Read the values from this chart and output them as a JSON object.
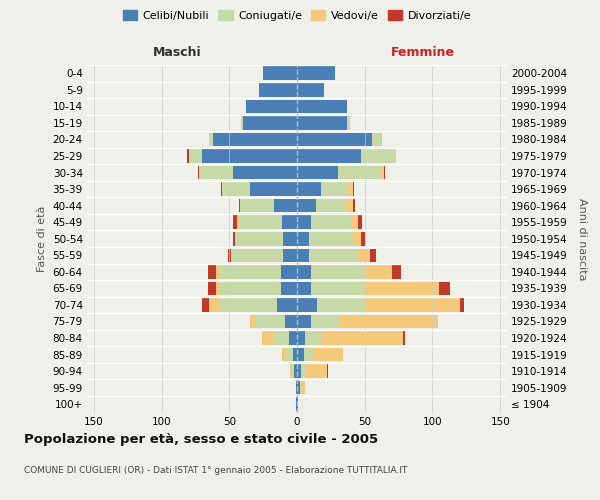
{
  "age_groups": [
    "100+",
    "95-99",
    "90-94",
    "85-89",
    "80-84",
    "75-79",
    "70-74",
    "65-69",
    "60-64",
    "55-59",
    "50-54",
    "45-49",
    "40-44",
    "35-39",
    "30-34",
    "25-29",
    "20-24",
    "15-19",
    "10-14",
    "5-9",
    "0-4"
  ],
  "birth_years": [
    "≤ 1904",
    "1905-1909",
    "1910-1914",
    "1915-1919",
    "1920-1924",
    "1925-1929",
    "1930-1934",
    "1935-1939",
    "1940-1944",
    "1945-1949",
    "1950-1954",
    "1955-1959",
    "1960-1964",
    "1965-1969",
    "1970-1974",
    "1975-1979",
    "1980-1984",
    "1985-1989",
    "1990-1994",
    "1995-1999",
    "2000-2004"
  ],
  "maschi": {
    "celibi": [
      1,
      1,
      2,
      3,
      6,
      9,
      15,
      12,
      12,
      10,
      10,
      11,
      17,
      35,
      47,
      70,
      62,
      40,
      38,
      28,
      25
    ],
    "coniugati": [
      0,
      0,
      2,
      5,
      12,
      22,
      42,
      45,
      45,
      38,
      35,
      32,
      25,
      20,
      25,
      10,
      3,
      1,
      0,
      0,
      0
    ],
    "vedovi": [
      0,
      0,
      1,
      3,
      8,
      4,
      8,
      3,
      3,
      1,
      1,
      1,
      0,
      0,
      0,
      0,
      0,
      0,
      0,
      0,
      0
    ],
    "divorziati": [
      0,
      0,
      0,
      0,
      0,
      0,
      5,
      6,
      6,
      2,
      1,
      3,
      1,
      1,
      1,
      1,
      0,
      0,
      0,
      0,
      0
    ]
  },
  "femmine": {
    "nubili": [
      1,
      2,
      3,
      5,
      6,
      10,
      15,
      10,
      10,
      9,
      9,
      10,
      14,
      18,
      30,
      47,
      55,
      37,
      37,
      20,
      28
    ],
    "coniugate": [
      0,
      1,
      4,
      7,
      12,
      22,
      35,
      40,
      40,
      35,
      33,
      30,
      22,
      20,
      32,
      25,
      8,
      2,
      0,
      0,
      0
    ],
    "vedove": [
      0,
      3,
      15,
      22,
      60,
      72,
      70,
      55,
      20,
      10,
      5,
      5,
      5,
      3,
      2,
      1,
      0,
      0,
      0,
      0,
      0
    ],
    "divorziate": [
      0,
      0,
      1,
      0,
      2,
      0,
      3,
      8,
      7,
      4,
      3,
      3,
      2,
      1,
      1,
      0,
      0,
      0,
      0,
      0,
      0
    ]
  },
  "colors": {
    "celibi": "#4a7fb5",
    "coniugati": "#c8d9a8",
    "vedovi": "#f5c97a",
    "divorziati": "#c0392b"
  },
  "xlim": 155,
  "title": "Popolazione per età, sesso e stato civile - 2005",
  "subtitle": "COMUNE DI CUGLIERI (OR) - Dati ISTAT 1° gennaio 2005 - Elaborazione TUTTITALIA.IT",
  "ylabel_left": "Fasce di età",
  "ylabel_right": "Anni di nascita",
  "xlabel_maschi": "Maschi",
  "xlabel_femmine": "Femmine",
  "legend_labels": [
    "Celibi/Nubili",
    "Coniugati/e",
    "Vedovi/e",
    "Divorziati/e"
  ],
  "bg_color": "#f0f0eb",
  "maschi_color": "#333333",
  "femmine_color": "#cc2222"
}
